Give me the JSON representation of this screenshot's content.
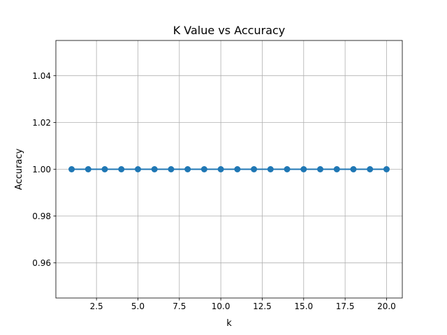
{
  "chart_data": {
    "type": "line",
    "title": "K Value vs Accuracy",
    "xlabel": "k",
    "ylabel": "Accuracy",
    "x": [
      1,
      2,
      3,
      4,
      5,
      6,
      7,
      8,
      9,
      10,
      11,
      12,
      13,
      14,
      15,
      16,
      17,
      18,
      19,
      20
    ],
    "series": [
      {
        "values": [
          1,
          1,
          1,
          1,
          1,
          1,
          1,
          1,
          1,
          1,
          1,
          1,
          1,
          1,
          1,
          1,
          1,
          1,
          1,
          1
        ],
        "color": "#1f77b4",
        "marker": "circle"
      }
    ],
    "xlim": [
      0.05,
      20.95
    ],
    "ylim": [
      0.945,
      1.055
    ],
    "xticks": [
      2.5,
      5.0,
      7.5,
      10.0,
      12.5,
      15.0,
      17.5,
      20.0
    ],
    "xtick_labels": [
      "2.5",
      "5.0",
      "7.5",
      "10.0",
      "12.5",
      "15.0",
      "17.5",
      "20.0"
    ],
    "yticks": [
      0.96,
      0.98,
      1.0,
      1.02,
      1.04
    ],
    "ytick_labels": [
      "0.96",
      "0.98",
      "1.00",
      "1.02",
      "1.04"
    ],
    "grid": true,
    "colors": {
      "line": "#1f77b4",
      "grid": "#b0b0b0",
      "axes": "#000000"
    }
  }
}
